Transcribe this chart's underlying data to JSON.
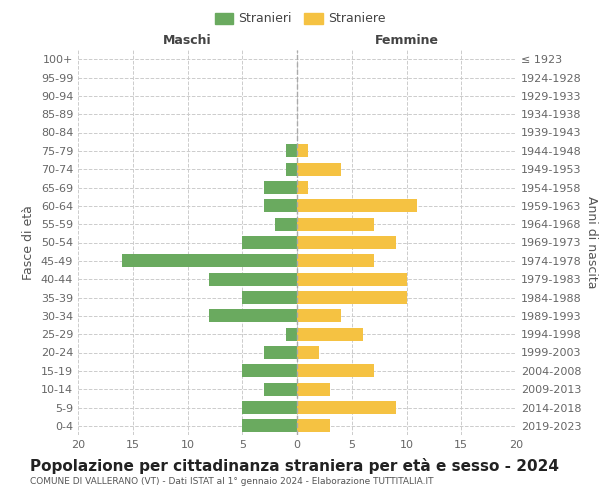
{
  "age_groups": [
    "0-4",
    "5-9",
    "10-14",
    "15-19",
    "20-24",
    "25-29",
    "30-34",
    "35-39",
    "40-44",
    "45-49",
    "50-54",
    "55-59",
    "60-64",
    "65-69",
    "70-74",
    "75-79",
    "80-84",
    "85-89",
    "90-94",
    "95-99",
    "100+"
  ],
  "birth_years": [
    "2019-2023",
    "2014-2018",
    "2009-2013",
    "2004-2008",
    "1999-2003",
    "1994-1998",
    "1989-1993",
    "1984-1988",
    "1979-1983",
    "1974-1978",
    "1969-1973",
    "1964-1968",
    "1959-1963",
    "1954-1958",
    "1949-1953",
    "1944-1948",
    "1939-1943",
    "1934-1938",
    "1929-1933",
    "1924-1928",
    "≤ 1923"
  ],
  "males": [
    5,
    5,
    3,
    5,
    3,
    1,
    8,
    5,
    8,
    16,
    5,
    2,
    3,
    3,
    1,
    1,
    0,
    0,
    0,
    0,
    0
  ],
  "females": [
    3,
    9,
    3,
    7,
    2,
    6,
    4,
    10,
    10,
    7,
    9,
    7,
    11,
    1,
    4,
    1,
    0,
    0,
    0,
    0,
    0
  ],
  "male_color": "#6aaa5f",
  "female_color": "#f5c242",
  "background_color": "#ffffff",
  "grid_color": "#cccccc",
  "title": "Popolazione per cittadinanza straniera per età e sesso - 2024",
  "subtitle": "COMUNE DI VALLERANO (VT) - Dati ISTAT al 1° gennaio 2024 - Elaborazione TUTTITALIA.IT",
  "xlabel_left": "Maschi",
  "xlabel_right": "Femmine",
  "ylabel_left": "Fasce di età",
  "ylabel_right": "Anni di nascita",
  "legend_stranieri": "Stranieri",
  "legend_straniere": "Straniere",
  "xlim": 20,
  "tick_fontsize": 8,
  "label_fontsize": 9,
  "title_fontsize": 11
}
